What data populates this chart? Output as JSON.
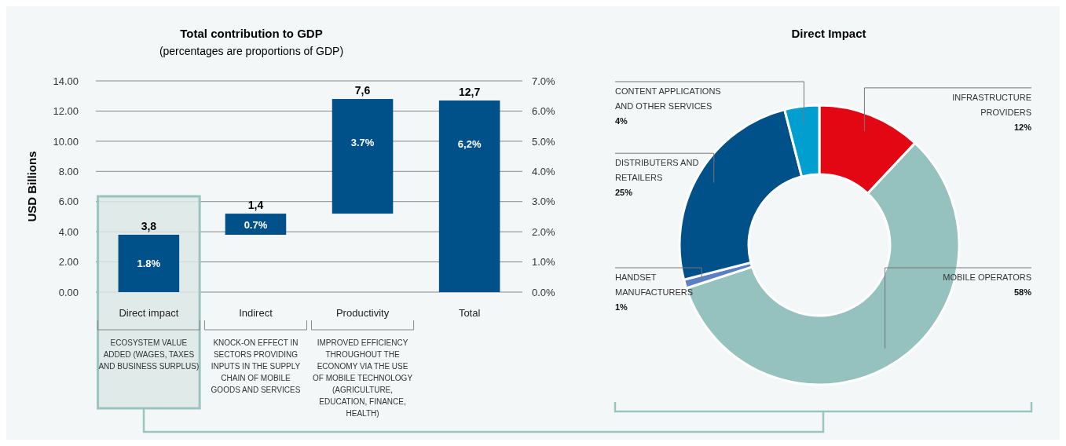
{
  "chart_data": [
    {
      "type": "bar",
      "title": "Total contribution to GDP",
      "subtitle": "(percentages are proportions of GDP)",
      "ylabel": "USD Billions",
      "categories": [
        "Direct impact",
        "Indirect",
        "Productivity",
        "Total"
      ],
      "values": [
        3.8,
        1.4,
        7.6,
        12.7
      ],
      "base": [
        0,
        3.8,
        5.2,
        0
      ],
      "color": "#00508a",
      "value_labels": [
        "3,8",
        "1,4",
        "7,6",
        "12,7"
      ],
      "ylim": [
        0,
        14
      ],
      "yticks": [
        {
          "value": 0,
          "label": "0.00"
        },
        {
          "value": 2,
          "label": "2.00"
        },
        {
          "value": 4,
          "label": "4.00"
        },
        {
          "value": 6,
          "label": "6.00"
        },
        {
          "value": 8,
          "label": "8.00"
        },
        {
          "value": 10,
          "label": "10.00"
        },
        {
          "value": 12,
          "label": "12.00"
        },
        {
          "value": 14,
          "label": "14.00"
        }
      ],
      "y2lim": [
        0,
        7
      ],
      "y2ticks": [
        {
          "value": 0,
          "label": "0.0%"
        },
        {
          "value": 1,
          "label": "1.0%"
        },
        {
          "value": 2,
          "label": "2.0%"
        },
        {
          "value": 3,
          "label": "3.0%"
        },
        {
          "value": 4,
          "label": "4.0%"
        },
        {
          "value": 5,
          "label": "5.0%"
        },
        {
          "value": 6,
          "label": "6.0%"
        },
        {
          "value": 7,
          "label": "7.0%"
        }
      ],
      "grid": "y",
      "bands": [
        {
          "axis": "x",
          "from": "Direct impact",
          "to": "Direct impact",
          "color": "#dbe8e6"
        }
      ],
      "annotations": [
        "1.8%",
        "0.7%",
        "3.7%",
        "6,2%",
        "ECOSYSTEM VALUE ADDED (WAGES, TAXES AND BUSINESS SURPLUS)",
        "KNOCK-ON EFFECT IN SECTORS PROVIDING INPUTS IN THE SUPPLY CHAIN OF MOBILE GOODS AND SERVICES",
        "IMPROVED EFFICIENCY THROUGHOUT THE ECONOMY VIA THE USE OF MOBILE TECHNOLOGY (AGRICULTURE, EDUCATION, FINANCE, HEALTH)"
      ]
    },
    {
      "type": "donut",
      "title": "Direct Impact",
      "categories": [
        "INFRASTRUCTURE PROVIDERS",
        "MOBILE OPERATORS",
        "HANDSET MANUFACTURERS",
        "DISTRIBUTERS AND RETAILERS",
        "CONTENT APPLICATIONS AND OTHER SERVICES"
      ],
      "values": [
        12,
        58,
        1,
        25,
        4
      ],
      "colors": [
        "#e30613",
        "#95c1be",
        "#5b7fc4",
        "#00508a",
        "#009fcf"
      ],
      "value_labels": [
        "12%",
        "58%",
        "1%",
        "25%",
        "4%"
      ]
    }
  ]
}
